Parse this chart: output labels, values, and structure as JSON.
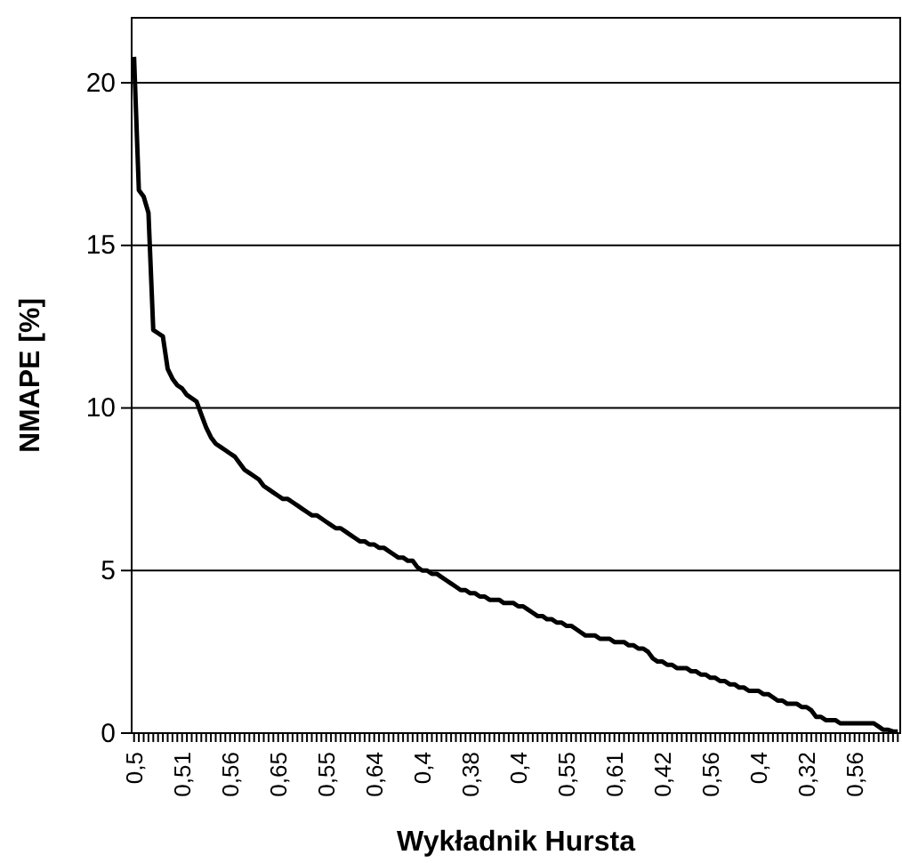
{
  "chart_data": {
    "type": "line",
    "xlabel": "Wykładnik Hursta",
    "ylabel": "NMAPE [%]",
    "categories": [
      "0,5",
      null,
      null,
      null,
      null,
      null,
      null,
      null,
      null,
      null,
      "0,51",
      null,
      null,
      null,
      null,
      null,
      null,
      null,
      null,
      null,
      "0,56",
      null,
      null,
      null,
      null,
      null,
      null,
      null,
      null,
      null,
      "0,65",
      null,
      null,
      null,
      null,
      null,
      null,
      null,
      null,
      null,
      "0,55",
      null,
      null,
      null,
      null,
      null,
      null,
      null,
      null,
      null,
      "0,64",
      null,
      null,
      null,
      null,
      null,
      null,
      null,
      null,
      null,
      "0,4",
      null,
      null,
      null,
      null,
      null,
      null,
      null,
      null,
      null,
      "0,38",
      null,
      null,
      null,
      null,
      null,
      null,
      null,
      null,
      null,
      "0,4",
      null,
      null,
      null,
      null,
      null,
      null,
      null,
      null,
      null,
      "0,55",
      null,
      null,
      null,
      null,
      null,
      null,
      null,
      null,
      null,
      "0,61",
      null,
      null,
      null,
      null,
      null,
      null,
      null,
      null,
      null,
      "0,42",
      null,
      null,
      null,
      null,
      null,
      null,
      null,
      null,
      null,
      "0,56",
      null,
      null,
      null,
      null,
      null,
      null,
      null,
      null,
      null,
      "0,4",
      null,
      null,
      null,
      null,
      null,
      null,
      null,
      null,
      null,
      "0,32",
      null,
      null,
      null,
      null,
      null,
      null,
      null,
      null,
      null,
      "0,56",
      null,
      null,
      null,
      null,
      null,
      null,
      null,
      null,
      null
    ],
    "series": [
      {
        "color": "#000000",
        "values": [
          20.8,
          16.7,
          16.5,
          16.0,
          12.4,
          12.3,
          12.2,
          11.2,
          10.9,
          10.7,
          10.6,
          10.4,
          10.3,
          10.2,
          9.8,
          9.4,
          9.1,
          8.9,
          8.8,
          8.7,
          8.6,
          8.5,
          8.3,
          8.1,
          8.0,
          7.9,
          7.8,
          7.6,
          7.5,
          7.4,
          7.3,
          7.2,
          7.2,
          7.1,
          7.0,
          6.9,
          6.8,
          6.7,
          6.7,
          6.6,
          6.5,
          6.4,
          6.3,
          6.3,
          6.2,
          6.1,
          6.0,
          5.9,
          5.9,
          5.8,
          5.8,
          5.7,
          5.7,
          5.6,
          5.5,
          5.4,
          5.4,
          5.3,
          5.3,
          5.1,
          5.0,
          5.0,
          4.9,
          4.9,
          4.8,
          4.7,
          4.6,
          4.5,
          4.4,
          4.4,
          4.3,
          4.3,
          4.2,
          4.2,
          4.1,
          4.1,
          4.1,
          4.0,
          4.0,
          4.0,
          3.9,
          3.9,
          3.8,
          3.7,
          3.6,
          3.6,
          3.5,
          3.5,
          3.4,
          3.4,
          3.3,
          3.3,
          3.2,
          3.1,
          3.0,
          3.0,
          3.0,
          2.9,
          2.9,
          2.9,
          2.8,
          2.8,
          2.8,
          2.7,
          2.7,
          2.6,
          2.6,
          2.5,
          2.3,
          2.2,
          2.2,
          2.1,
          2.1,
          2.0,
          2.0,
          2.0,
          1.9,
          1.9,
          1.8,
          1.8,
          1.7,
          1.7,
          1.6,
          1.6,
          1.5,
          1.5,
          1.4,
          1.4,
          1.3,
          1.3,
          1.3,
          1.2,
          1.2,
          1.1,
          1.0,
          1.0,
          0.9,
          0.9,
          0.9,
          0.8,
          0.8,
          0.7,
          0.5,
          0.5,
          0.4,
          0.4,
          0.4,
          0.3,
          0.3,
          0.3,
          0.3,
          0.3,
          0.3,
          0.3,
          0.3,
          0.2,
          0.1,
          0.1,
          0.05,
          0.05
        ]
      }
    ],
    "ylim": [
      0,
      22
    ],
    "yticks": [
      0,
      5,
      10,
      15,
      20
    ],
    "grid": "y",
    "marker": "none",
    "line_style": "solid"
  }
}
